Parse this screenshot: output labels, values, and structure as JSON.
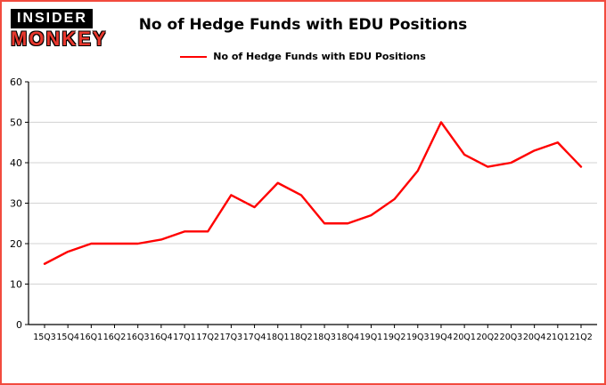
{
  "brand": {
    "line1": "INSIDER",
    "line2": "MONKEY",
    "monkey_color": "#e8382e",
    "box_bg": "#000000",
    "box_text": "#ffffff"
  },
  "header": {
    "title": "No of Hedge Funds with EDU Positions"
  },
  "legend": {
    "label": "No of Hedge Funds with EDU Positions",
    "line_color": "#ff0000"
  },
  "frame": {
    "border_color": "#f24b3e",
    "background": "#ffffff"
  },
  "chart_data": {
    "type": "line",
    "title": "No of Hedge Funds with EDU Positions",
    "xlabel": "",
    "ylabel": "",
    "categories": [
      "15Q3",
      "15Q4",
      "16Q1",
      "16Q2",
      "16Q3",
      "16Q4",
      "17Q1",
      "17Q2",
      "17Q3",
      "17Q4",
      "18Q1",
      "18Q2",
      "18Q3",
      "18Q4",
      "19Q1",
      "19Q2",
      "19Q3",
      "19Q4",
      "20Q1",
      "20Q2",
      "20Q3",
      "20Q4",
      "21Q1",
      "21Q2"
    ],
    "series": [
      {
        "name": "No of Hedge Funds with EDU Positions",
        "values": [
          15,
          18,
          20,
          20,
          20,
          21,
          23,
          23,
          32,
          29,
          35,
          32,
          25,
          25,
          27,
          31,
          38,
          50,
          42,
          39,
          40,
          43,
          45,
          39
        ]
      }
    ],
    "ylim": [
      0,
      60
    ],
    "yticks": [
      0,
      10,
      20,
      30,
      40,
      50,
      60
    ],
    "grid": true,
    "grid_color": "#d3d3d3",
    "axis_color": "#000000",
    "line_color": "#ff0000",
    "legend_position": "top-center"
  }
}
